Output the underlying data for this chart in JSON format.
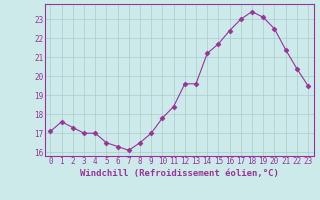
{
  "x": [
    0,
    1,
    2,
    3,
    4,
    5,
    6,
    7,
    8,
    9,
    10,
    11,
    12,
    13,
    14,
    15,
    16,
    17,
    18,
    19,
    20,
    21,
    22,
    23
  ],
  "y": [
    17.1,
    17.6,
    17.3,
    17.0,
    17.0,
    16.5,
    16.3,
    16.1,
    16.5,
    17.0,
    17.8,
    18.4,
    19.6,
    19.6,
    21.2,
    21.7,
    22.4,
    23.0,
    23.4,
    23.1,
    22.5,
    21.4,
    20.4,
    19.5
  ],
  "line_color": "#993399",
  "marker": "D",
  "marker_size": 2.5,
  "bg_color": "#cceaea",
  "grid_color": "#aacccc",
  "xlabel": "Windchill (Refroidissement éolien,°C)",
  "ylim": [
    15.8,
    23.8
  ],
  "xlim": [
    -0.5,
    23.5
  ],
  "yticks": [
    16,
    17,
    18,
    19,
    20,
    21,
    22,
    23
  ],
  "xticks": [
    0,
    1,
    2,
    3,
    4,
    5,
    6,
    7,
    8,
    9,
    10,
    11,
    12,
    13,
    14,
    15,
    16,
    17,
    18,
    19,
    20,
    21,
    22,
    23
  ],
  "tick_label_size": 5.5,
  "xlabel_size": 6.5,
  "linewidth": 0.8
}
